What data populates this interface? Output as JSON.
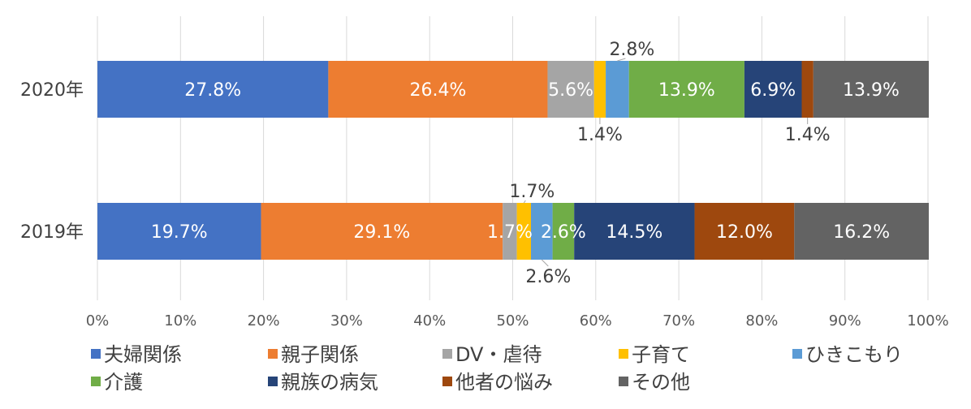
{
  "chart_data": {
    "type": "bar",
    "orientation": "horizontal",
    "stacked": "percent",
    "categories": [
      "2020年",
      "2019年"
    ],
    "series": [
      {
        "name": "夫婦関係",
        "color": "#4472C4",
        "values": [
          27.8,
          19.7
        ]
      },
      {
        "name": "親子関係",
        "color": "#ED7D31",
        "values": [
          26.4,
          29.1
        ]
      },
      {
        "name": "DV・虐待",
        "color": "#A5A5A5",
        "values": [
          5.6,
          1.7
        ]
      },
      {
        "name": "子育て",
        "color": "#FFC000",
        "values": [
          1.4,
          1.7
        ]
      },
      {
        "name": "ひきこもり",
        "color": "#5B9BD5",
        "values": [
          2.8,
          2.6
        ]
      },
      {
        "name": "介護",
        "color": "#70AD47",
        "values": [
          13.9,
          2.6
        ]
      },
      {
        "name": "親族の病気",
        "color": "#264478",
        "values": [
          6.9,
          14.5
        ]
      },
      {
        "name": "他者の悩み",
        "color": "#9E480E",
        "values": [
          1.4,
          12.0
        ]
      },
      {
        "name": "その他",
        "color": "#636363",
        "values": [
          13.9,
          16.2
        ]
      }
    ],
    "data_labels": [
      [
        "27.8%",
        "19.7%"
      ],
      [
        "26.4%",
        "29.1%"
      ],
      [
        "5.6%",
        "1.7%"
      ],
      [
        "1.4%",
        "1.7%"
      ],
      [
        "2.8%",
        "2.6%"
      ],
      [
        "13.9%",
        "2.6%"
      ],
      [
        "6.9%",
        "14.5%"
      ],
      [
        "1.4%",
        "12.0%"
      ],
      [
        "13.9%",
        "16.2%"
      ]
    ],
    "x_ticks": [
      "0%",
      "10%",
      "20%",
      "30%",
      "40%",
      "50%",
      "60%",
      "70%",
      "80%",
      "90%",
      "100%"
    ],
    "xlim": [
      0,
      100
    ],
    "grid": "vertical",
    "legend_position": "bottom"
  }
}
